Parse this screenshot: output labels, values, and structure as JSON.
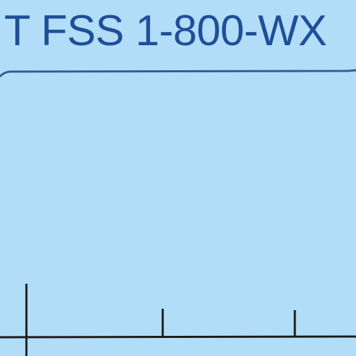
{
  "map": {
    "frequency_label": "T FSS 1-800-WX",
    "colors": {
      "background": "#b2ddf8",
      "label_text": "#1f4e9a",
      "underline": "#2d5f95",
      "tick_line": "#1a1a1a"
    }
  }
}
